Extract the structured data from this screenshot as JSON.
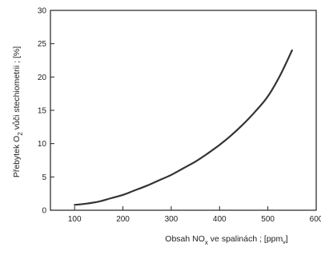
{
  "chart_data": {
    "type": "line",
    "title": "",
    "ylabel_main": "Přebytek O",
    "ylabel_sub": "2",
    "ylabel_rest": " vůči stechiometrii ; [%]",
    "xlabel_main": "Obsah NO",
    "xlabel_sub": "x",
    "xlabel_rest": " ve spalinách ; [ppm",
    "xlabel_unit_sub": "v",
    "xlabel_close": "]",
    "xlim": [
      50,
      600
    ],
    "ylim": [
      0,
      30
    ],
    "x_ticks": [
      100,
      200,
      300,
      400,
      500,
      600
    ],
    "y_ticks": [
      0,
      5,
      10,
      15,
      20,
      25,
      30
    ],
    "x_tick_labels": [
      "100",
      "200",
      "300",
      "400",
      "500",
      "600"
    ],
    "y_tick_labels": [
      "0",
      "5",
      "10",
      "15",
      "20",
      "25",
      "30"
    ],
    "grid": false,
    "series": [
      {
        "x": [
          100,
          125,
          150,
          175,
          200,
          225,
          250,
          275,
          300,
          325,
          350,
          375,
          400,
          425,
          450,
          475,
          500,
          525,
          550
        ],
        "y": [
          0.8,
          1.0,
          1.3,
          1.8,
          2.3,
          3.0,
          3.7,
          4.5,
          5.3,
          6.3,
          7.3,
          8.5,
          9.8,
          11.3,
          13.0,
          14.9,
          17.1,
          20.2,
          24.0
        ]
      }
    ]
  }
}
